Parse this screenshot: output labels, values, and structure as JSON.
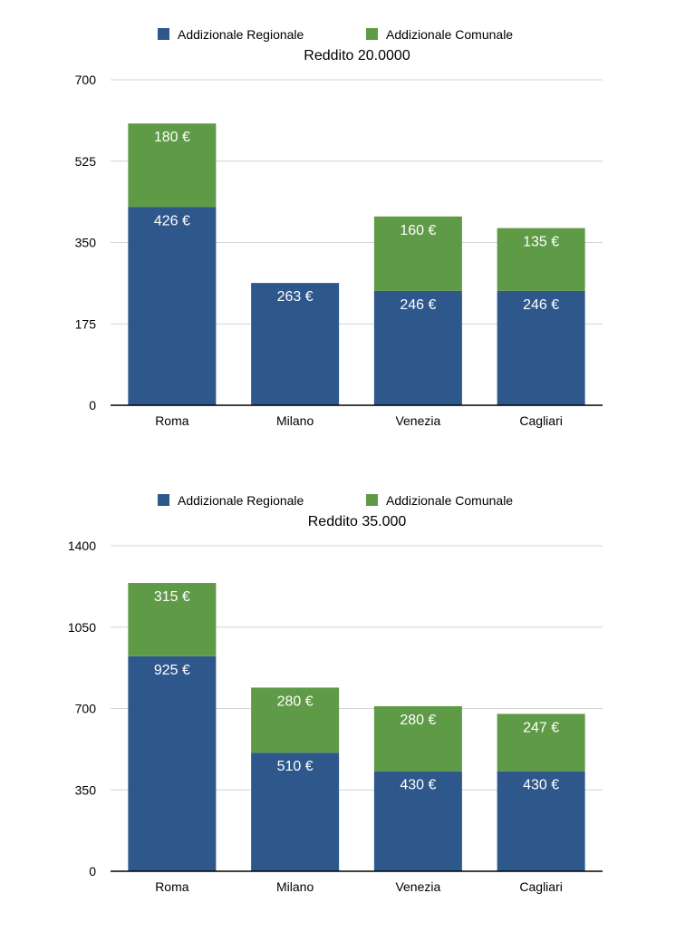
{
  "colors": {
    "regional": "#2e578c",
    "municipal": "#5f9a47",
    "grid": "#d4d4d4",
    "axis": "#000000",
    "text": "#000000",
    "bar_label": "#ffffff"
  },
  "chart_data": [
    {
      "type": "bar",
      "stacked": true,
      "title": "Reddito 20.0000",
      "categories": [
        "Roma",
        "Milano",
        "Venezia",
        "Cagliari"
      ],
      "ylim": [
        0,
        700
      ],
      "yticks": [
        "700",
        "525",
        "350",
        "175",
        "0"
      ],
      "grid": true,
      "legend_position": "top-center",
      "series": [
        {
          "name": "Addizionale Regionale",
          "color": "#2e578c",
          "values": [
            426,
            263,
            246,
            246
          ],
          "labels": [
            "426 €",
            "263 €",
            "246 €",
            "246 €"
          ]
        },
        {
          "name": "Addizionale Comunale",
          "color": "#5f9a47",
          "values": [
            180,
            0,
            160,
            135
          ],
          "labels": [
            "180 €",
            "",
            "160 €",
            "135 €"
          ]
        }
      ]
    },
    {
      "type": "bar",
      "stacked": true,
      "title": "Reddito 35.000",
      "categories": [
        "Roma",
        "Milano",
        "Venezia",
        "Cagliari"
      ],
      "ylim": [
        0,
        1400
      ],
      "yticks": [
        "1400",
        "1050",
        "700",
        "350",
        "0"
      ],
      "grid": true,
      "legend_position": "top-center",
      "series": [
        {
          "name": "Addizionale Regionale",
          "color": "#2e578c",
          "values": [
            925,
            510,
            430,
            430
          ],
          "labels": [
            "925 €",
            "510 €",
            "430 €",
            "430 €"
          ]
        },
        {
          "name": "Addizionale Comunale",
          "color": "#5f9a47",
          "values": [
            315,
            280,
            280,
            247
          ],
          "labels": [
            "315 €",
            "280 €",
            "280 €",
            "247 €"
          ]
        }
      ]
    }
  ]
}
